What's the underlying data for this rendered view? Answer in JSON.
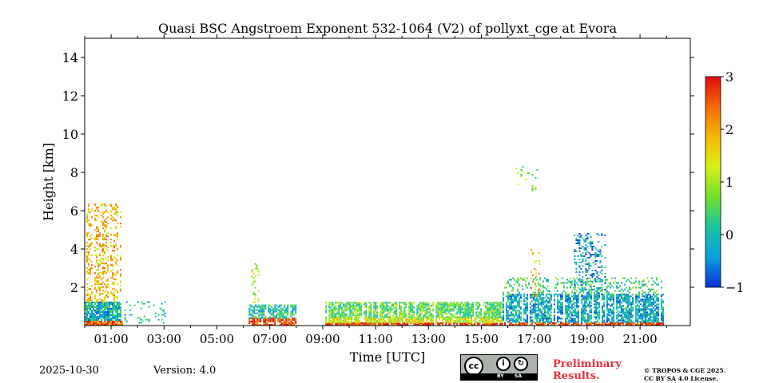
{
  "chart_data": {
    "type": "heatmap",
    "title": "Quasi BSC Angstroem Exponent 532-1064 (V2) of pollyxt_cge at Evora",
    "xlabel": "Time [UTC]",
    "ylabel": "Height [km]",
    "xlim_hours": [
      0.0,
      22.9
    ],
    "ylim_km": [
      0.0,
      15.0
    ],
    "x_ticks": [
      {
        "value": 1,
        "label": "01:00"
      },
      {
        "value": 3,
        "label": "03:00"
      },
      {
        "value": 5,
        "label": "05:00"
      },
      {
        "value": 7,
        "label": "07:00"
      },
      {
        "value": 9,
        "label": "09:00"
      },
      {
        "value": 11,
        "label": "11:00"
      },
      {
        "value": 13,
        "label": "13:00"
      },
      {
        "value": 15,
        "label": "15:00"
      },
      {
        "value": 17,
        "label": "17:00"
      },
      {
        "value": 19,
        "label": "19:00"
      },
      {
        "value": 21,
        "label": "21:00"
      }
    ],
    "y_ticks": [
      {
        "value": 2,
        "label": "2"
      },
      {
        "value": 4,
        "label": "4"
      },
      {
        "value": 6,
        "label": "6"
      },
      {
        "value": 8,
        "label": "8"
      },
      {
        "value": 10,
        "label": "10"
      },
      {
        "value": 12,
        "label": "12"
      },
      {
        "value": 14,
        "label": "14"
      }
    ],
    "colorbar": {
      "range": [
        -1,
        3
      ],
      "ticks": [
        {
          "value": -1,
          "label": "−1"
        },
        {
          "value": 0,
          "label": "0"
        },
        {
          "value": 1,
          "label": "1"
        },
        {
          "value": 2,
          "label": "2"
        },
        {
          "value": 3,
          "label": "3"
        }
      ],
      "colors": [
        "#0a2fd6",
        "#0aa0e0",
        "#18c6a0",
        "#6fe02a",
        "#d8f018",
        "#f7b800",
        "#f46a00",
        "#e00c0c"
      ]
    },
    "regions": [
      {
        "t0": 0.0,
        "t1": 1.45,
        "h0": 0.0,
        "h1": 0.25,
        "value": 2.4,
        "density": 0.9
      },
      {
        "t0": 0.0,
        "t1": 1.45,
        "h0": 0.25,
        "h1": 1.2,
        "value": -0.1,
        "density": 0.85
      },
      {
        "t0": 0.0,
        "t1": 1.45,
        "h0": 1.2,
        "h1": 6.3,
        "value": 1.8,
        "density": 0.35
      },
      {
        "t0": 1.5,
        "t1": 3.1,
        "h0": 0.1,
        "h1": 1.3,
        "value": 0.0,
        "density": 0.15
      },
      {
        "t0": 6.2,
        "t1": 8.0,
        "h0": 0.0,
        "h1": 0.35,
        "value": 2.6,
        "density": 0.8
      },
      {
        "t0": 6.2,
        "t1": 8.0,
        "h0": 0.35,
        "h1": 1.1,
        "value": 0.1,
        "density": 0.7
      },
      {
        "t0": 6.3,
        "t1": 6.6,
        "h0": 1.1,
        "h1": 3.2,
        "value": 1.0,
        "density": 0.25
      },
      {
        "t0": 9.1,
        "t1": 15.8,
        "h0": 0.0,
        "h1": 0.12,
        "value": 2.8,
        "density": 0.95
      },
      {
        "t0": 9.1,
        "t1": 15.8,
        "h0": 0.12,
        "h1": 0.4,
        "value": 1.3,
        "density": 0.85
      },
      {
        "t0": 9.1,
        "t1": 15.8,
        "h0": 0.4,
        "h1": 1.2,
        "value": 0.6,
        "density": 0.8
      },
      {
        "t0": 15.8,
        "t1": 21.9,
        "h0": 0.0,
        "h1": 0.15,
        "value": 2.6,
        "density": 0.9
      },
      {
        "t0": 15.8,
        "t1": 21.9,
        "h0": 0.15,
        "h1": 1.6,
        "value": -0.2,
        "density": 0.75
      },
      {
        "t0": 15.8,
        "t1": 21.9,
        "h0": 1.6,
        "h1": 2.5,
        "value": 0.4,
        "density": 0.25
      },
      {
        "t0": 18.5,
        "t1": 19.7,
        "h0": 1.5,
        "h1": 4.8,
        "value": -0.3,
        "density": 0.3
      },
      {
        "t0": 16.8,
        "t1": 17.2,
        "h0": 1.5,
        "h1": 4.0,
        "value": 1.8,
        "density": 0.2
      },
      {
        "t0": 16.3,
        "t1": 17.1,
        "h0": 7.0,
        "h1": 8.3,
        "value": 0.8,
        "density": 0.08
      }
    ]
  },
  "footer": {
    "date": "2025-10-30",
    "version": "Version: 4.0",
    "prelim_line1": "Preliminary",
    "prelim_line2": "Results.",
    "copyright_line1": "© TROPOS & CGE 2025.",
    "copyright_line2": "CC BY SA 4.0 License.",
    "cc_text": "cc",
    "by_text": "BY",
    "sa_text": "SA"
  }
}
